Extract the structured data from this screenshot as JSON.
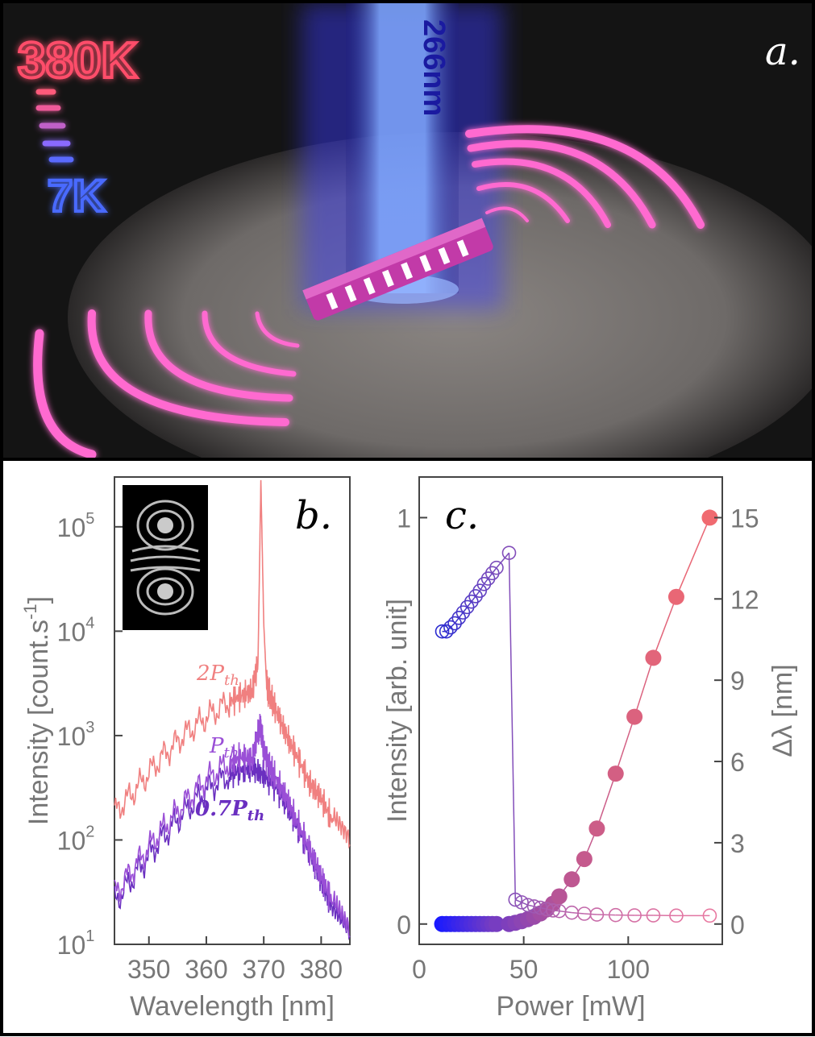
{
  "panel_a": {
    "label": "a.",
    "temp_high": "380K",
    "temp_low": "7K",
    "wavelength_label": "266nm"
  },
  "chart_data": [
    {
      "type": "line",
      "panel_label": "b.",
      "xlabel": "Wavelength [nm]",
      "ylabel": "Intensity [count.s",
      "ylabel_sup": "-1",
      "ylabel_close": "]",
      "xlim": [
        344,
        385
      ],
      "ylim": [
        10,
        300000
      ],
      "log_y": true,
      "x_ticks": [
        350,
        360,
        370,
        380
      ],
      "y_ticks": [
        {
          "base": "10",
          "exp": "1",
          "value": 10
        },
        {
          "base": "10",
          "exp": "2",
          "value": 100
        },
        {
          "base": "10",
          "exp": "3",
          "value": 1000
        },
        {
          "base": "10",
          "exp": "4",
          "value": 10000
        },
        {
          "base": "10",
          "exp": "5",
          "value": 100000
        }
      ],
      "series": [
        {
          "name": "2P_th",
          "label_main": "2P",
          "label_sub": "th",
          "color": "#f08080",
          "x": [
            344,
            348,
            352,
            356,
            360,
            364,
            366,
            368,
            369,
            369.5,
            370,
            370.5,
            371,
            372,
            374,
            376,
            378,
            380,
            382,
            385
          ],
          "y": [
            180,
            320,
            600,
            1000,
            1500,
            2100,
            2400,
            2700,
            5000,
            280000,
            12000,
            3000,
            2500,
            1800,
            1000,
            600,
            350,
            250,
            150,
            90
          ]
        },
        {
          "name": "P_th",
          "label_main": "P",
          "label_sub": "th",
          "color": "#9a4fd6",
          "x": [
            344,
            348,
            352,
            356,
            360,
            364,
            366,
            368,
            369,
            369.5,
            370,
            371,
            372,
            374,
            376,
            378,
            380,
            382,
            385
          ],
          "y": [
            30,
            60,
            120,
            220,
            380,
            550,
            620,
            600,
            1100,
            1200,
            700,
            500,
            400,
            250,
            140,
            80,
            45,
            25,
            12
          ]
        },
        {
          "name": "0.7P_th",
          "label_main": "0.7P",
          "label_sub": "th",
          "color": "#6a2fc0",
          "x": [
            344,
            348,
            352,
            356,
            360,
            364,
            366,
            368,
            370,
            372,
            374,
            376,
            378,
            380,
            382,
            385
          ],
          "y": [
            25,
            50,
            100,
            180,
            300,
            420,
            470,
            480,
            420,
            330,
            220,
            130,
            75,
            40,
            22,
            12
          ]
        }
      ]
    },
    {
      "type": "scatter",
      "panel_label": "c.",
      "xlabel": "Power [mW]",
      "ylabel_left": "Intensity [arb. unit]",
      "ylabel_right": "Δλ [nm]",
      "xlim": [
        0,
        145
      ],
      "ylim_left": [
        -0.05,
        1.1
      ],
      "ylim_right": [
        -0.75,
        16.5
      ],
      "x_ticks": [
        0,
        50,
        100
      ],
      "y_ticks_left": [
        0,
        1
      ],
      "y_ticks_right": [
        0,
        3,
        6,
        9,
        12,
        15
      ],
      "series": [
        {
          "name": "",
          "axis": "left",
          "marker": "filled",
          "color_start": "#1a1aff",
          "color_end": "#f06a70",
          "x": [
            11,
            13,
            15,
            17,
            19,
            21,
            23,
            25,
            27,
            29,
            31,
            33,
            35,
            37,
            43,
            46,
            49,
            52,
            55,
            58,
            61,
            64,
            67,
            73,
            79,
            85,
            94,
            103,
            112,
            123,
            139
          ],
          "y": [
            0,
            0,
            0,
            0,
            0,
            0,
            0,
            0,
            0,
            0,
            0,
            0,
            0,
            0,
            0,
            0.003,
            0.007,
            0.012,
            0.018,
            0.026,
            0.036,
            0.05,
            0.068,
            0.11,
            0.16,
            0.235,
            0.37,
            0.51,
            0.655,
            0.805,
            1.0
          ]
        },
        {
          "name": "",
          "axis": "right",
          "marker": "open",
          "color_start": "#2a2ad0",
          "color_end": "#e878a0",
          "x": [
            11,
            13,
            15,
            17,
            19,
            21,
            23,
            25,
            27,
            29,
            31,
            33,
            35,
            37,
            43,
            46,
            49,
            52,
            55,
            58,
            61,
            64,
            67,
            73,
            79,
            85,
            94,
            103,
            112,
            123,
            139
          ],
          "y": [
            10.8,
            10.8,
            10.95,
            11.1,
            11.3,
            11.5,
            11.7,
            11.9,
            12.1,
            12.3,
            12.55,
            12.75,
            12.95,
            13.15,
            13.7,
            0.9,
            0.8,
            0.7,
            0.65,
            0.6,
            0.55,
            0.5,
            0.48,
            0.42,
            0.38,
            0.35,
            0.33,
            0.32,
            0.32,
            0.31,
            0.31
          ]
        }
      ]
    }
  ]
}
